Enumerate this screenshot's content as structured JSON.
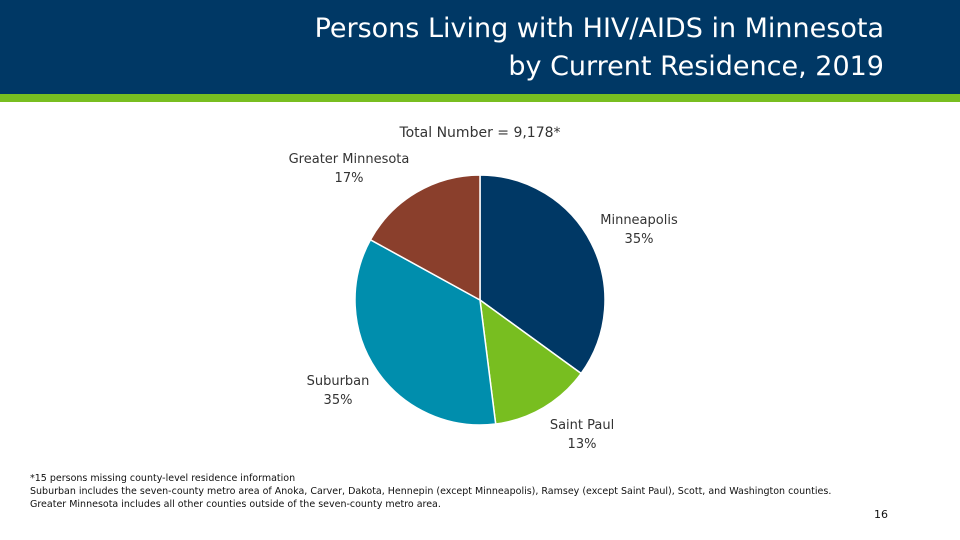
{
  "slide": {
    "title_line1": "Persons Living with HIV/AIDS in Minnesota",
    "title_line2": "by Current Residence, 2019",
    "page_number": "16",
    "colors": {
      "header": "#003865",
      "accent": "#78be20"
    }
  },
  "footnotes": [
    "*15 persons missing county-level residence information",
    "Suburban includes the seven-county metro area of Anoka, Carver, Dakota, Hennepin (except Minneapolis), Ramsey (except Saint Paul), Scott, and Washington counties.",
    "Greater Minnesota includes all other counties outside of the seven-county metro area."
  ],
  "chart_data": {
    "type": "pie",
    "title": "Total Number = 9,178*",
    "slices": [
      {
        "name": "Minneapolis",
        "value": 35,
        "label": "35%",
        "color": "#003865"
      },
      {
        "name": "Saint Paul",
        "value": 13,
        "label": "13%",
        "color": "#78be20"
      },
      {
        "name": "Suburban",
        "value": 35,
        "label": "35%",
        "color": "#008ead"
      },
      {
        "name": "Greater Minnesota",
        "value": 17,
        "label": "17%",
        "color": "#8a3f2c"
      }
    ]
  }
}
